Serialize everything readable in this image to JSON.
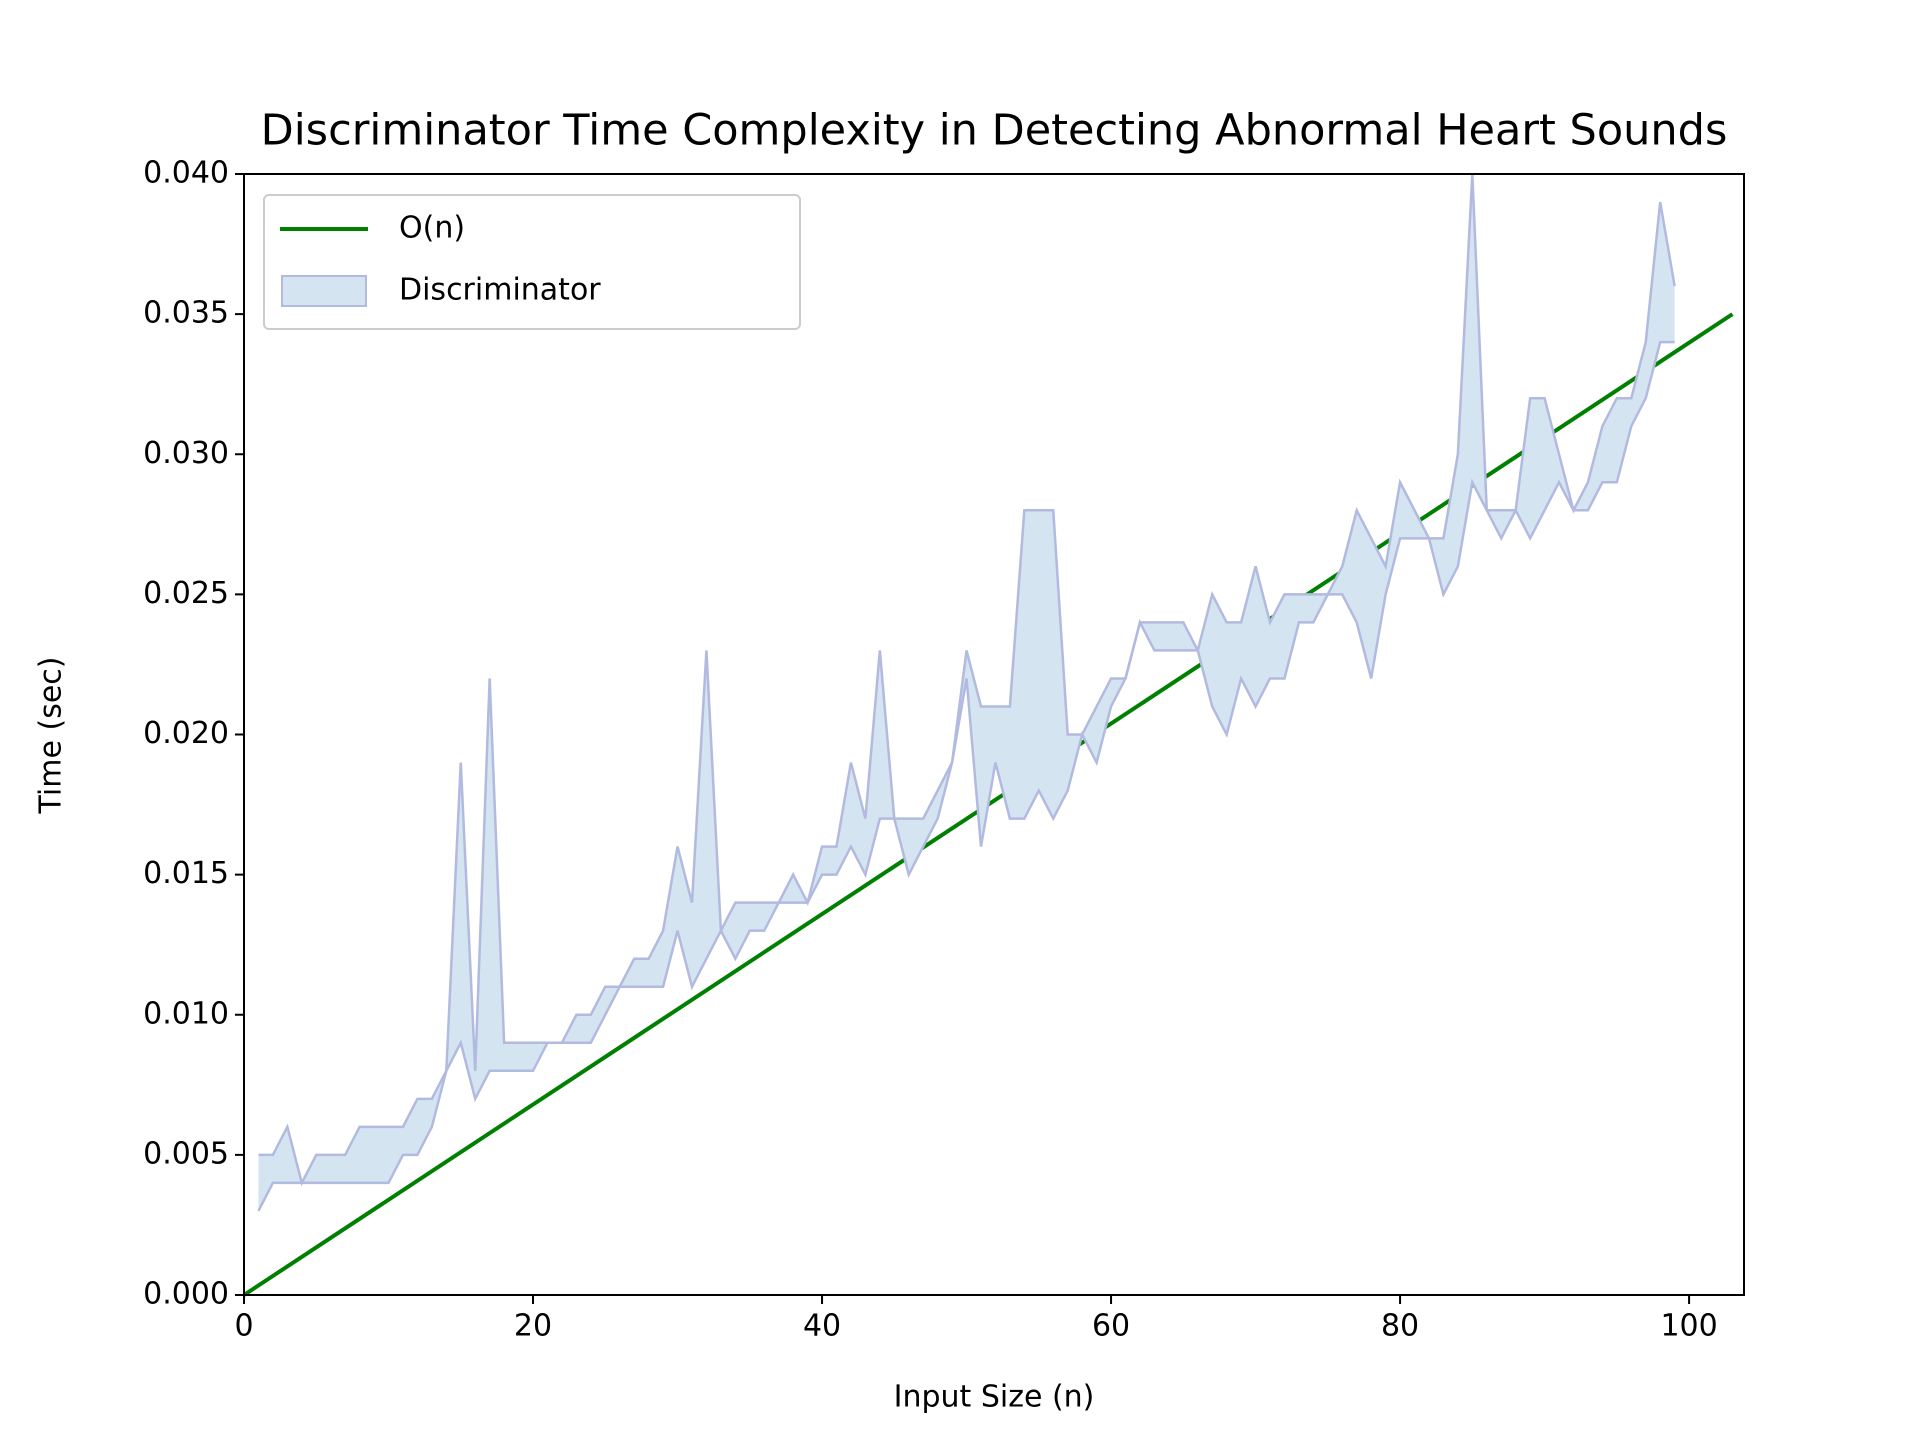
{
  "chart_data": {
    "type": "line",
    "title": "Discriminator Time Complexity in Detecting Abnormal Heart Sounds",
    "xlabel": "Input Size (n)",
    "ylabel": "Time (sec)",
    "xlim": [
      0,
      103.8
    ],
    "ylim": [
      0,
      0.04
    ],
    "xticks": [
      0,
      20,
      40,
      60,
      80,
      100
    ],
    "yticks": [
      {
        "value": 0,
        "label": "0.000"
      },
      {
        "value": 0.005,
        "label": "0.005"
      },
      {
        "value": 0.01,
        "label": "0.010"
      },
      {
        "value": 0.015,
        "label": "0.015"
      },
      {
        "value": 0.02,
        "label": "0.020"
      },
      {
        "value": 0.025,
        "label": "0.025"
      },
      {
        "value": 0.03,
        "label": "0.030"
      },
      {
        "value": 0.035,
        "label": "0.035"
      },
      {
        "value": 0.04,
        "label": "0.040"
      }
    ],
    "grid": false,
    "legend": "upper left",
    "series": [
      {
        "name": "O(n)",
        "type": "line",
        "color": "#008000",
        "x": [
          0,
          103
        ],
        "values": [
          0,
          0.035
        ]
      },
      {
        "name": "Discriminator",
        "type": "fill_between",
        "color": "#d4e4f1",
        "edgecolor": "#b3badf",
        "x": [
          1,
          2,
          3,
          4,
          5,
          6,
          7,
          8,
          9,
          10,
          11,
          12,
          13,
          14,
          15,
          16,
          17,
          18,
          19,
          20,
          21,
          22,
          23,
          24,
          25,
          26,
          27,
          28,
          29,
          30,
          31,
          32,
          33,
          34,
          35,
          36,
          37,
          38,
          39,
          40,
          41,
          42,
          43,
          44,
          45,
          46,
          47,
          48,
          49,
          50,
          51,
          52,
          53,
          54,
          55,
          56,
          57,
          58,
          59,
          60,
          61,
          62,
          63,
          64,
          65,
          66,
          67,
          68,
          69,
          70,
          71,
          72,
          73,
          74,
          75,
          76,
          77,
          78,
          79,
          80,
          81,
          82,
          83,
          84,
          85,
          86,
          87,
          88,
          89,
          90,
          91,
          92,
          93,
          94,
          95,
          96,
          97,
          98,
          99
        ],
        "lower": [
          0.003,
          0.004,
          0.004,
          0.004,
          0.004,
          0.004,
          0.004,
          0.004,
          0.004,
          0.004,
          0.005,
          0.005,
          0.006,
          0.008,
          0.009,
          0.007,
          0.008,
          0.008,
          0.008,
          0.008,
          0.009,
          0.009,
          0.009,
          0.009,
          0.01,
          0.011,
          0.011,
          0.011,
          0.011,
          0.013,
          0.011,
          0.012,
          0.013,
          0.012,
          0.013,
          0.013,
          0.014,
          0.014,
          0.014,
          0.015,
          0.015,
          0.016,
          0.015,
          0.017,
          0.017,
          0.015,
          0.016,
          0.017,
          0.019,
          0.022,
          0.016,
          0.019,
          0.017,
          0.017,
          0.018,
          0.017,
          0.018,
          0.02,
          0.019,
          0.021,
          0.022,
          0.024,
          0.023,
          0.023,
          0.023,
          0.023,
          0.021,
          0.02,
          0.022,
          0.021,
          0.022,
          0.022,
          0.024,
          0.024,
          0.025,
          0.025,
          0.024,
          0.022,
          0.025,
          0.027,
          0.027,
          0.027,
          0.025,
          0.026,
          0.029,
          0.028,
          0.027,
          0.028,
          0.027,
          0.028,
          0.029,
          0.028,
          0.028,
          0.029,
          0.029,
          0.031,
          0.032,
          0.034,
          0.034
        ],
        "upper": [
          0.005,
          0.005,
          0.006,
          0.004,
          0.005,
          0.005,
          0.005,
          0.006,
          0.006,
          0.006,
          0.006,
          0.007,
          0.007,
          0.008,
          0.019,
          0.008,
          0.022,
          0.009,
          0.009,
          0.009,
          0.009,
          0.009,
          0.01,
          0.01,
          0.011,
          0.011,
          0.012,
          0.012,
          0.013,
          0.016,
          0.014,
          0.023,
          0.013,
          0.014,
          0.014,
          0.014,
          0.014,
          0.015,
          0.014,
          0.016,
          0.016,
          0.019,
          0.017,
          0.023,
          0.017,
          0.017,
          0.017,
          0.018,
          0.019,
          0.023,
          0.021,
          0.021,
          0.021,
          0.028,
          0.028,
          0.028,
          0.02,
          0.02,
          0.021,
          0.022,
          0.022,
          0.024,
          0.024,
          0.024,
          0.024,
          0.023,
          0.025,
          0.024,
          0.024,
          0.026,
          0.024,
          0.025,
          0.025,
          0.025,
          0.025,
          0.026,
          0.028,
          0.027,
          0.026,
          0.029,
          0.028,
          0.027,
          0.027,
          0.03,
          0.04,
          0.028,
          0.028,
          0.028,
          0.032,
          0.032,
          0.03,
          0.028,
          0.029,
          0.031,
          0.032,
          0.032,
          0.034,
          0.039,
          0.036
        ]
      }
    ]
  }
}
